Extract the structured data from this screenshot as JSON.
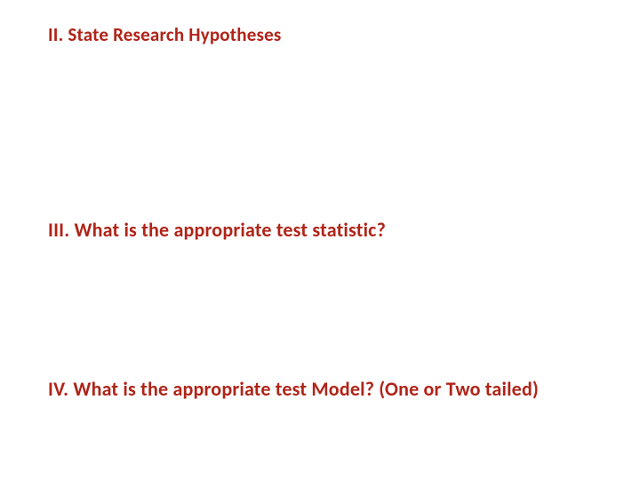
{
  "headings": {
    "section2": "II. State Research Hypotheses",
    "section3": "III. What is the appropriate test statistic?",
    "section4": "IV. What is the appropriate test Model? (One or Two tailed)"
  },
  "colors": {
    "text": "#b02418",
    "background": "#ffffff"
  },
  "typography": {
    "font_family": "Calibri",
    "font_weight": "bold",
    "h1_fontsize": 21,
    "h2_fontsize": 22,
    "h3_fontsize": 22
  }
}
